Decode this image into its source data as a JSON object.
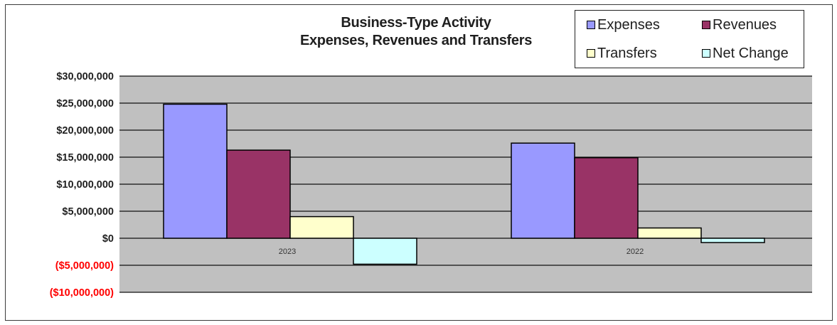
{
  "chart_data": {
    "type": "bar",
    "title_line1": "Business-Type Activity",
    "title_line2": "Expenses, Revenues and Transfers",
    "categories": [
      "2023",
      "2022"
    ],
    "series": [
      {
        "name": "Expenses",
        "color": "#9999ff",
        "values": [
          24800000,
          17600000
        ]
      },
      {
        "name": "Revenues",
        "color": "#993366",
        "values": [
          16300000,
          14900000
        ]
      },
      {
        "name": "Transfers",
        "color": "#ffffcc",
        "values": [
          4000000,
          1900000
        ]
      },
      {
        "name": "Net Change",
        "color": "#ccffff",
        "values": [
          -4800000,
          -800000
        ]
      }
    ],
    "ylim": [
      -10000000,
      30000000
    ],
    "y_ticks": [
      {
        "value": 30000000,
        "label": "$30,000,000"
      },
      {
        "value": 25000000,
        "label": "$25,000,000"
      },
      {
        "value": 20000000,
        "label": "$20,000,000"
      },
      {
        "value": 15000000,
        "label": "$15,000,000"
      },
      {
        "value": 10000000,
        "label": "$10,000,000"
      },
      {
        "value": 5000000,
        "label": "$5,000,000"
      },
      {
        "value": 0,
        "label": "$0"
      },
      {
        "value": -5000000,
        "label": "($5,000,000)"
      },
      {
        "value": -10000000,
        "label": "($10,000,000)"
      }
    ],
    "negative_label_color": "#ff0000",
    "positive_label_color": "#1f1f1f",
    "plot_background": "#c0c0c0",
    "gridlines": true,
    "legend_position": "top-right"
  }
}
